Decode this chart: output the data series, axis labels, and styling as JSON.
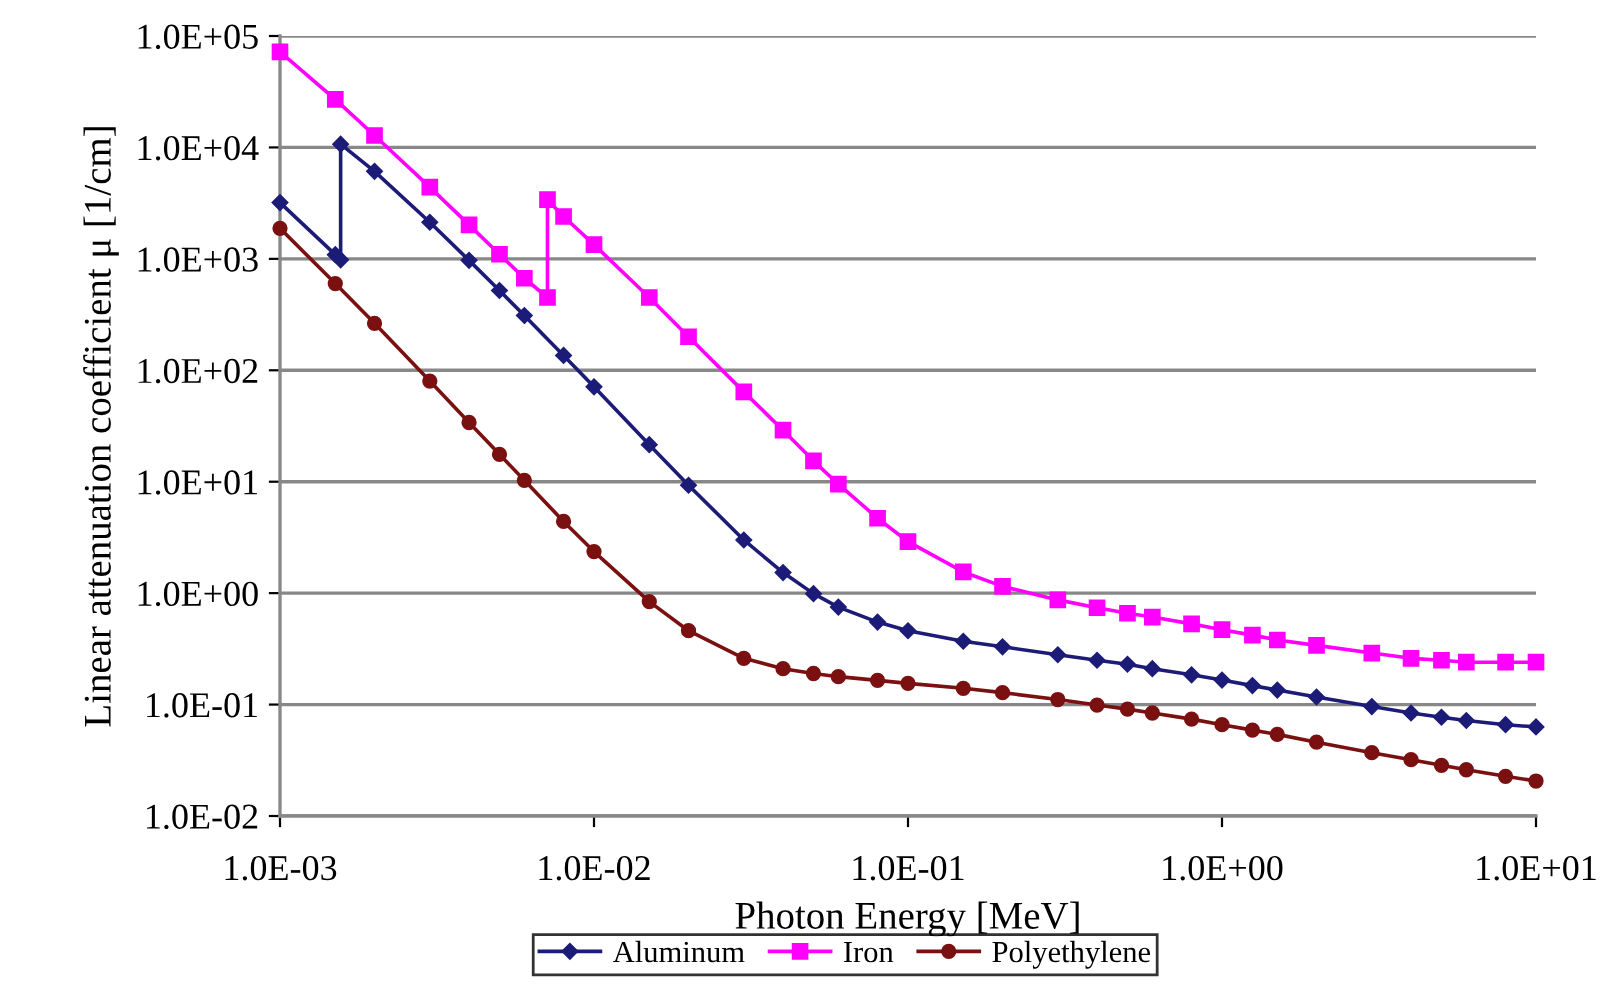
{
  "chart_data": {
    "type": "line",
    "xlabel": "Photon Energy [MeV]",
    "ylabel": "Linear attenuation coefficient μ [1/cm]",
    "log": "xy",
    "grid": "y",
    "legend": "bottom",
    "xlim": [
      0.001,
      10
    ],
    "xticks": [
      {
        "value": 0.001,
        "label": "1.0E-03"
      },
      {
        "value": 0.01,
        "label": "1.0E-02"
      },
      {
        "value": 0.1,
        "label": "1.0E-01"
      },
      {
        "value": 1,
        "label": "1.0E+00"
      },
      {
        "value": 10,
        "label": "1.0E+01"
      }
    ],
    "ylim": [
      0.01,
      100000
    ],
    "yticks": [
      {
        "value": 0.01,
        "label": "1.0E-02"
      },
      {
        "value": 0.1,
        "label": "1.0E-01"
      },
      {
        "value": 1,
        "label": "1.0E+00"
      },
      {
        "value": 10,
        "label": "1.0E+01"
      },
      {
        "value": 100,
        "label": "1.0E+02"
      },
      {
        "value": 1000,
        "label": "1.0E+03"
      },
      {
        "value": 10000,
        "label": "1.0E+04"
      },
      {
        "value": 100000,
        "label": "1.0E+05"
      }
    ],
    "series": [
      {
        "name": "Aluminum",
        "color": "#1c1c78",
        "marker": "diamond",
        "x": [
          0.001,
          0.0015,
          0.00156,
          0.00156,
          0.002,
          0.003,
          0.004,
          0.005,
          0.006,
          0.008,
          0.01,
          0.015,
          0.02,
          0.03,
          0.04,
          0.05,
          0.06,
          0.08,
          0.1,
          0.15,
          0.2,
          0.3,
          0.4,
          0.5,
          0.6,
          0.8,
          1,
          1.25,
          1.5,
          2,
          3,
          4,
          5,
          6,
          8,
          10
        ],
        "values": [
          3200,
          1090,
          980,
          10700,
          6100,
          2130,
          970,
          520,
          310,
          136,
          71,
          21.5,
          9.3,
          3.0,
          1.53,
          0.99,
          0.75,
          0.55,
          0.46,
          0.37,
          0.33,
          0.28,
          0.25,
          0.23,
          0.21,
          0.185,
          0.166,
          0.148,
          0.135,
          0.117,
          0.096,
          0.084,
          0.077,
          0.072,
          0.066,
          0.063
        ]
      },
      {
        "name": "Iron",
        "color": "#ff00ff",
        "marker": "square",
        "x": [
          0.001,
          0.0015,
          0.002,
          0.003,
          0.004,
          0.005,
          0.006,
          0.00711,
          0.00711,
          0.008,
          0.01,
          0.015,
          0.02,
          0.03,
          0.04,
          0.05,
          0.06,
          0.08,
          0.1,
          0.15,
          0.2,
          0.3,
          0.4,
          0.5,
          0.6,
          0.8,
          1,
          1.25,
          1.5,
          2,
          3,
          4,
          5,
          6,
          8,
          10
        ],
        "values": [
          72000,
          27000,
          12800,
          4400,
          2020,
          1100,
          670,
          450,
          3400,
          2400,
          1340,
          450,
          200,
          64,
          29,
          15.4,
          9.5,
          4.7,
          2.9,
          1.55,
          1.15,
          0.87,
          0.74,
          0.66,
          0.61,
          0.53,
          0.47,
          0.42,
          0.38,
          0.34,
          0.29,
          0.26,
          0.25,
          0.24,
          0.24,
          0.24
        ]
      },
      {
        "name": "Polyethylene",
        "color": "#7a1010",
        "marker": "circle",
        "x": [
          0.001,
          0.0015,
          0.002,
          0.003,
          0.004,
          0.005,
          0.006,
          0.008,
          0.01,
          0.015,
          0.02,
          0.03,
          0.04,
          0.05,
          0.06,
          0.08,
          0.1,
          0.15,
          0.2,
          0.3,
          0.4,
          0.5,
          0.6,
          0.8,
          1,
          1.25,
          1.5,
          2,
          3,
          4,
          5,
          6,
          8,
          10
        ],
        "values": [
          1880,
          600,
          264,
          80,
          34,
          17.6,
          10.3,
          4.4,
          2.36,
          0.84,
          0.46,
          0.26,
          0.21,
          0.19,
          0.178,
          0.165,
          0.155,
          0.14,
          0.128,
          0.111,
          0.099,
          0.091,
          0.084,
          0.074,
          0.066,
          0.059,
          0.054,
          0.046,
          0.037,
          0.032,
          0.0285,
          0.026,
          0.0227,
          0.0206
        ]
      }
    ]
  }
}
